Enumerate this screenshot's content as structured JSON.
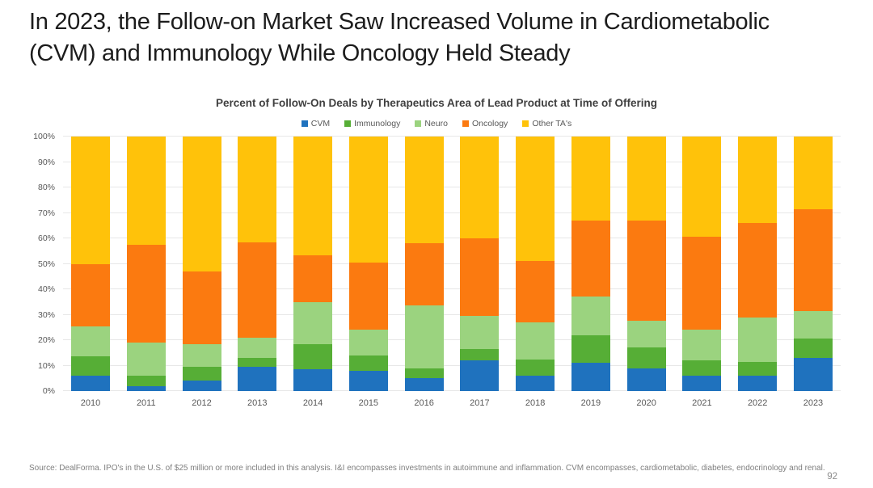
{
  "slide": {
    "title": "In 2023, the Follow-on Market Saw Increased Volume in Cardiometabolic (CVM) and Immunology While Oncology Held Steady",
    "source_note": "Source: DealForma. IPO's in the U.S. of $25 million or more included in this analysis. I&I encompasses investments in autoimmune and inflammation.  CVM encompasses, cardiometabolic, diabetes, endocrinology and renal.",
    "page_number": "92"
  },
  "chart_data": {
    "type": "bar",
    "stacked": true,
    "title": "Percent of Follow-On Deals by Therapeutics Area of Lead Product at Time of Offering",
    "categories": [
      "2010",
      "2011",
      "2012",
      "2013",
      "2014",
      "2015",
      "2016",
      "2017",
      "2018",
      "2019",
      "2020",
      "2021",
      "2022",
      "2023"
    ],
    "series": [
      {
        "name": "CVM",
        "color": "#1F72BE",
        "values": [
          6,
          2,
          4,
          9.5,
          8.5,
          8,
          5,
          12,
          6,
          11,
          9,
          6,
          6,
          13
        ]
      },
      {
        "name": "Immunology",
        "color": "#56AE36",
        "values": [
          7.5,
          4,
          5.5,
          3.5,
          10,
          6,
          4,
          4.5,
          6.5,
          11,
          8,
          6,
          5.5,
          7.5
        ]
      },
      {
        "name": "Neuro",
        "color": "#9BD37F",
        "values": [
          12,
          13,
          9,
          8,
          16.5,
          10,
          24.5,
          13,
          14.5,
          15,
          10.5,
          12,
          17.5,
          11
        ]
      },
      {
        "name": "Oncology",
        "color": "#FB7A10",
        "values": [
          24.5,
          38.5,
          28.5,
          37.5,
          18.5,
          26.5,
          24.5,
          30.5,
          24,
          30,
          39.5,
          36.5,
          37,
          40
        ]
      },
      {
        "name": "Other TA's",
        "color": "#FFC20A",
        "values": [
          50,
          42.5,
          53,
          41.5,
          46.5,
          49.5,
          42,
          40,
          49,
          33,
          33,
          39.5,
          34,
          28.5
        ]
      }
    ],
    "ylabel": "",
    "xlabel": "",
    "y_ticks": [
      "0%",
      "10%",
      "20%",
      "30%",
      "40%",
      "50%",
      "60%",
      "70%",
      "80%",
      "90%",
      "100%"
    ],
    "ylim": [
      0,
      100
    ],
    "grid": true,
    "legend_position": "top"
  }
}
